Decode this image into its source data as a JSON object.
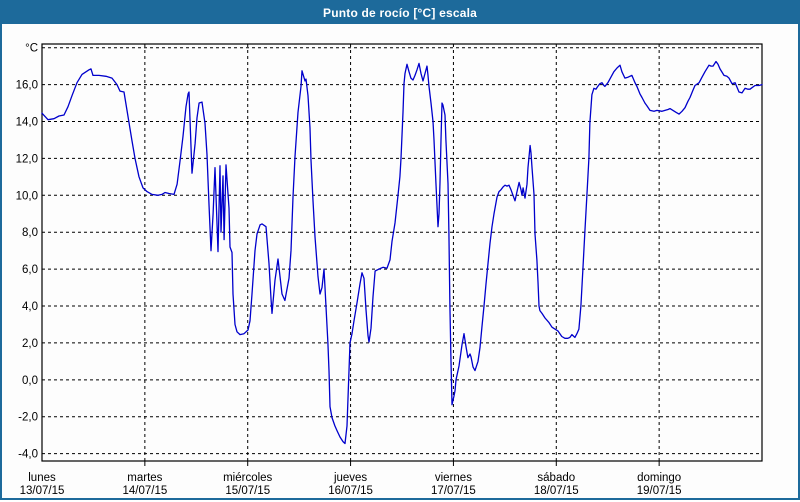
{
  "window": {
    "title": "Punto de rocío [°C] escala"
  },
  "colors": {
    "accent": "#1d6a9b",
    "line": "#0000cc",
    "grid": "#000000",
    "text": "#000000",
    "background": "#fdfdfd"
  },
  "chart_data": {
    "type": "line",
    "title": "Punto de rocío [°C] escala",
    "unit_label": "°C",
    "ylabel": "°C",
    "ylim": [
      -4.4,
      18.2
    ],
    "grid": "dashed",
    "legend": "none",
    "yticks": [
      {
        "value": 18,
        "label": "°C"
      },
      {
        "value": 16,
        "label": "16,0"
      },
      {
        "value": 14,
        "label": "14,0"
      },
      {
        "value": 12,
        "label": "12,0"
      },
      {
        "value": 10,
        "label": "10,0"
      },
      {
        "value": 8,
        "label": "8,0"
      },
      {
        "value": 6,
        "label": "6,0"
      },
      {
        "value": 4,
        "label": "4,0"
      },
      {
        "value": 2,
        "label": "2,0"
      },
      {
        "value": 0,
        "label": "0,0"
      },
      {
        "value": -2,
        "label": "-2,0"
      },
      {
        "value": -4,
        "label": "-4,0"
      }
    ],
    "x_range_days": [
      0,
      7
    ],
    "days": [
      {
        "name": "lunes",
        "date": "13/07/15"
      },
      {
        "name": "martes",
        "date": "14/07/15"
      },
      {
        "name": "miércoles",
        "date": "15/07/15"
      },
      {
        "name": "jueves",
        "date": "16/07/15"
      },
      {
        "name": "viernes",
        "date": "17/07/15"
      },
      {
        "name": "sábado",
        "date": "18/07/15"
      },
      {
        "name": "domingo",
        "date": "19/07/15"
      }
    ],
    "series": [
      {
        "name": "Punto de rocío",
        "color": "#0000cc",
        "points": [
          [
            0.0,
            14.45
          ],
          [
            0.058,
            14.1
          ],
          [
            0.117,
            14.15
          ],
          [
            0.165,
            14.3
          ],
          [
            0.214,
            14.35
          ],
          [
            0.253,
            14.8
          ],
          [
            0.292,
            15.4
          ],
          [
            0.34,
            16.1
          ],
          [
            0.389,
            16.55
          ],
          [
            0.457,
            16.8
          ],
          [
            0.476,
            16.85
          ],
          [
            0.496,
            16.5
          ],
          [
            0.554,
            16.5
          ],
          [
            0.622,
            16.45
          ],
          [
            0.681,
            16.35
          ],
          [
            0.729,
            16.0
          ],
          [
            0.758,
            15.65
          ],
          [
            0.797,
            15.6
          ],
          [
            0.826,
            14.6
          ],
          [
            0.875,
            12.95
          ],
          [
            0.904,
            12.0
          ],
          [
            0.943,
            11.0
          ],
          [
            0.982,
            10.4
          ],
          [
            1.021,
            10.2
          ],
          [
            1.069,
            10.05
          ],
          [
            1.128,
            10.0
          ],
          [
            1.167,
            10.05
          ],
          [
            1.196,
            10.15
          ],
          [
            1.235,
            10.1
          ],
          [
            1.283,
            10.05
          ],
          [
            1.313,
            10.6
          ],
          [
            1.342,
            11.85
          ],
          [
            1.371,
            13.2
          ],
          [
            1.4,
            14.8
          ],
          [
            1.42,
            15.5
          ],
          [
            1.429,
            15.6
          ],
          [
            1.439,
            14.1
          ],
          [
            1.458,
            11.2
          ],
          [
            1.488,
            12.8
          ],
          [
            1.507,
            14.2
          ],
          [
            1.527,
            15.0
          ],
          [
            1.556,
            15.05
          ],
          [
            1.585,
            13.9
          ],
          [
            1.604,
            12.2
          ],
          [
            1.624,
            9.5
          ],
          [
            1.643,
            7.0
          ],
          [
            1.663,
            9.0
          ],
          [
            1.682,
            11.5
          ],
          [
            1.711,
            6.95
          ],
          [
            1.731,
            11.6
          ],
          [
            1.74,
            8.0
          ],
          [
            1.76,
            11.05
          ],
          [
            1.77,
            7.6
          ],
          [
            1.789,
            11.65
          ],
          [
            1.818,
            9.3
          ],
          [
            1.828,
            7.2
          ],
          [
            1.847,
            6.9
          ],
          [
            1.857,
            4.65
          ],
          [
            1.876,
            3.0
          ],
          [
            1.896,
            2.6
          ],
          [
            1.925,
            2.45
          ],
          [
            1.964,
            2.5
          ],
          [
            2.003,
            2.7
          ],
          [
            2.022,
            3.2
          ],
          [
            2.042,
            4.65
          ],
          [
            2.071,
            7.0
          ],
          [
            2.09,
            7.9
          ],
          [
            2.12,
            8.4
          ],
          [
            2.139,
            8.45
          ],
          [
            2.178,
            8.3
          ],
          [
            2.207,
            6.3
          ],
          [
            2.226,
            4.4
          ],
          [
            2.236,
            3.6
          ],
          [
            2.265,
            5.4
          ],
          [
            2.294,
            6.55
          ],
          [
            2.314,
            5.6
          ],
          [
            2.333,
            4.65
          ],
          [
            2.362,
            4.3
          ],
          [
            2.401,
            5.5
          ],
          [
            2.421,
            7.0
          ],
          [
            2.44,
            9.9
          ],
          [
            2.46,
            12.1
          ],
          [
            2.489,
            14.5
          ],
          [
            2.518,
            15.9
          ],
          [
            2.528,
            16.75
          ],
          [
            2.557,
            16.2
          ],
          [
            2.567,
            16.3
          ],
          [
            2.586,
            15.4
          ],
          [
            2.606,
            13.65
          ],
          [
            2.615,
            11.9
          ],
          [
            2.635,
            9.7
          ],
          [
            2.654,
            7.75
          ],
          [
            2.683,
            5.6
          ],
          [
            2.703,
            4.65
          ],
          [
            2.722,
            5.0
          ],
          [
            2.742,
            6.0
          ],
          [
            2.751,
            5.0
          ],
          [
            2.761,
            3.95
          ],
          [
            2.78,
            2.0
          ],
          [
            2.79,
            0.5
          ],
          [
            2.8,
            -1.45
          ],
          [
            2.819,
            -2.05
          ],
          [
            2.848,
            -2.5
          ],
          [
            2.868,
            -2.75
          ],
          [
            2.897,
            -3.1
          ],
          [
            2.926,
            -3.35
          ],
          [
            2.946,
            -3.45
          ],
          [
            2.965,
            -2.5
          ],
          [
            2.975,
            -1.0
          ],
          [
            2.985,
            0.5
          ],
          [
            2.994,
            2.0
          ],
          [
            3.014,
            2.5
          ],
          [
            3.033,
            3.2
          ],
          [
            3.063,
            4.2
          ],
          [
            3.092,
            5.2
          ],
          [
            3.111,
            5.8
          ],
          [
            3.131,
            5.5
          ],
          [
            3.15,
            3.8
          ],
          [
            3.169,
            2.4
          ],
          [
            3.179,
            2.05
          ],
          [
            3.199,
            2.8
          ],
          [
            3.218,
            4.5
          ],
          [
            3.238,
            5.9
          ],
          [
            3.276,
            6.0
          ],
          [
            3.315,
            6.1
          ],
          [
            3.354,
            6.05
          ],
          [
            3.383,
            6.5
          ],
          [
            3.403,
            7.5
          ],
          [
            3.432,
            8.5
          ],
          [
            3.461,
            10.0
          ],
          [
            3.48,
            11.0
          ],
          [
            3.49,
            12.0
          ],
          [
            3.51,
            14.5
          ],
          [
            3.519,
            16.05
          ],
          [
            3.529,
            16.6
          ],
          [
            3.549,
            17.1
          ],
          [
            3.568,
            16.7
          ],
          [
            3.587,
            16.35
          ],
          [
            3.607,
            16.25
          ],
          [
            3.626,
            16.5
          ],
          [
            3.646,
            16.8
          ],
          [
            3.665,
            17.15
          ],
          [
            3.685,
            16.6
          ],
          [
            3.704,
            16.2
          ],
          [
            3.724,
            16.6
          ],
          [
            3.743,
            17.0
          ],
          [
            3.753,
            16.5
          ],
          [
            3.762,
            15.95
          ],
          [
            3.782,
            15.0
          ],
          [
            3.801,
            14.0
          ],
          [
            3.811,
            13.0
          ],
          [
            3.83,
            10.7
          ],
          [
            3.85,
            8.3
          ],
          [
            3.86,
            9.0
          ],
          [
            3.869,
            10.7
          ],
          [
            3.879,
            13.0
          ],
          [
            3.889,
            15.0
          ],
          [
            3.898,
            14.9
          ],
          [
            3.918,
            14.35
          ],
          [
            3.927,
            13.0
          ],
          [
            3.947,
            10.65
          ],
          [
            3.956,
            8.0
          ],
          [
            3.966,
            4.0
          ],
          [
            3.976,
            1.0
          ],
          [
            3.986,
            -1.35
          ],
          [
            4.005,
            -0.9
          ],
          [
            4.015,
            -0.6
          ],
          [
            4.025,
            0.0
          ],
          [
            4.054,
            0.75
          ],
          [
            4.083,
            1.9
          ],
          [
            4.103,
            2.5
          ],
          [
            4.122,
            1.8
          ],
          [
            4.141,
            1.2
          ],
          [
            4.161,
            1.4
          ],
          [
            4.171,
            1.25
          ],
          [
            4.19,
            0.7
          ],
          [
            4.21,
            0.5
          ],
          [
            4.239,
            1.0
          ],
          [
            4.258,
            1.75
          ],
          [
            4.278,
            2.9
          ],
          [
            4.297,
            4.0
          ],
          [
            4.317,
            5.2
          ],
          [
            4.336,
            6.3
          ],
          [
            4.356,
            7.4
          ],
          [
            4.375,
            8.3
          ],
          [
            4.394,
            9.0
          ],
          [
            4.424,
            9.9
          ],
          [
            4.443,
            10.2
          ],
          [
            4.462,
            10.3
          ],
          [
            4.482,
            10.45
          ],
          [
            4.501,
            10.55
          ],
          [
            4.521,
            10.5
          ],
          [
            4.54,
            10.55
          ],
          [
            4.56,
            10.3
          ],
          [
            4.579,
            10.0
          ],
          [
            4.599,
            9.7
          ],
          [
            4.618,
            10.2
          ],
          [
            4.638,
            10.7
          ],
          [
            4.657,
            10.3
          ],
          [
            4.667,
            10.0
          ],
          [
            4.677,
            10.4
          ],
          [
            4.696,
            9.85
          ],
          [
            4.715,
            10.6
          ],
          [
            4.725,
            11.5
          ],
          [
            4.745,
            12.7
          ],
          [
            4.754,
            12.3
          ],
          [
            4.764,
            11.5
          ],
          [
            4.783,
            10.05
          ],
          [
            4.793,
            7.9
          ],
          [
            4.812,
            6.5
          ],
          [
            4.822,
            5.3
          ],
          [
            4.832,
            4.0
          ],
          [
            4.841,
            3.75
          ],
          [
            4.861,
            3.6
          ],
          [
            4.89,
            3.35
          ],
          [
            4.929,
            3.1
          ],
          [
            4.958,
            2.85
          ],
          [
            4.987,
            2.75
          ],
          [
            5.016,
            2.65
          ],
          [
            5.035,
            2.5
          ],
          [
            5.054,
            2.35
          ],
          [
            5.084,
            2.25
          ],
          [
            5.113,
            2.25
          ],
          [
            5.132,
            2.3
          ],
          [
            5.152,
            2.45
          ],
          [
            5.171,
            2.35
          ],
          [
            5.181,
            2.3
          ],
          [
            5.2,
            2.5
          ],
          [
            5.22,
            2.75
          ],
          [
            5.239,
            4.0
          ],
          [
            5.259,
            6.0
          ],
          [
            5.278,
            8.05
          ],
          [
            5.298,
            10.0
          ],
          [
            5.317,
            12.0
          ],
          [
            5.327,
            13.95
          ],
          [
            5.346,
            15.45
          ],
          [
            5.366,
            15.8
          ],
          [
            5.385,
            15.75
          ],
          [
            5.404,
            15.9
          ],
          [
            5.424,
            16.05
          ],
          [
            5.444,
            16.1
          ],
          [
            5.463,
            15.95
          ],
          [
            5.473,
            15.9
          ],
          [
            5.502,
            16.1
          ],
          [
            5.531,
            16.4
          ],
          [
            5.56,
            16.7
          ],
          [
            5.59,
            16.9
          ],
          [
            5.619,
            17.05
          ],
          [
            5.638,
            16.7
          ],
          [
            5.667,
            16.35
          ],
          [
            5.697,
            16.4
          ],
          [
            5.735,
            16.5
          ],
          [
            5.765,
            16.1
          ],
          [
            5.784,
            15.9
          ],
          [
            5.813,
            15.5
          ],
          [
            5.833,
            15.3
          ],
          [
            5.862,
            15.0
          ],
          [
            5.881,
            14.85
          ],
          [
            5.911,
            14.6
          ],
          [
            5.95,
            14.55
          ],
          [
            5.979,
            14.6
          ],
          [
            6.028,
            14.55
          ],
          [
            6.057,
            14.6
          ],
          [
            6.086,
            14.65
          ],
          [
            6.106,
            14.7
          ],
          [
            6.135,
            14.6
          ],
          [
            6.164,
            14.5
          ],
          [
            6.193,
            14.4
          ],
          [
            6.222,
            14.55
          ],
          [
            6.251,
            14.75
          ],
          [
            6.281,
            15.1
          ],
          [
            6.3,
            15.3
          ],
          [
            6.329,
            15.7
          ],
          [
            6.349,
            15.95
          ],
          [
            6.388,
            16.1
          ],
          [
            6.417,
            16.4
          ],
          [
            6.446,
            16.7
          ],
          [
            6.485,
            17.05
          ],
          [
            6.504,
            17.0
          ],
          [
            6.524,
            17.0
          ],
          [
            6.553,
            17.25
          ],
          [
            6.572,
            17.1
          ],
          [
            6.592,
            16.85
          ],
          [
            6.631,
            16.5
          ],
          [
            6.66,
            16.45
          ],
          [
            6.679,
            16.35
          ],
          [
            6.708,
            16.05
          ],
          [
            6.738,
            16.1
          ],
          [
            6.776,
            15.6
          ],
          [
            6.806,
            15.55
          ],
          [
            6.835,
            15.8
          ],
          [
            6.864,
            15.75
          ],
          [
            6.883,
            15.75
          ],
          [
            6.932,
            15.95
          ],
          [
            6.971,
            15.95
          ],
          [
            7.0,
            16.0
          ]
        ]
      }
    ]
  }
}
